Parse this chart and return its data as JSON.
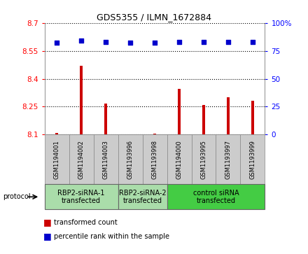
{
  "title": "GDS5355 / ILMN_1672884",
  "samples": [
    "GSM1194001",
    "GSM1194002",
    "GSM1194003",
    "GSM1193996",
    "GSM1193998",
    "GSM1194000",
    "GSM1193995",
    "GSM1193997",
    "GSM1193999"
  ],
  "bar_values": [
    8.11,
    8.47,
    8.265,
    8.1,
    8.105,
    8.345,
    8.26,
    8.3,
    8.28
  ],
  "blue_values": [
    82,
    84,
    83,
    82,
    82,
    83,
    83,
    83,
    83
  ],
  "ymin": 8.1,
  "ymax": 8.7,
  "y2min": 0,
  "y2max": 100,
  "yticks": [
    8.1,
    8.25,
    8.4,
    8.55,
    8.7
  ],
  "ytick_labels": [
    "8.1",
    "8.25",
    "8.4",
    "8.55",
    "8.7"
  ],
  "y2ticks": [
    0,
    25,
    50,
    75,
    100
  ],
  "y2tick_labels": [
    "0",
    "25",
    "50",
    "75",
    "100%"
  ],
  "bar_color": "#cc0000",
  "dot_color": "#0000cc",
  "protocol_groups": [
    {
      "label": "RBP2-siRNA-1\ntransfected",
      "start": 0,
      "end": 3,
      "color": "#aaddaa"
    },
    {
      "label": "RBP2-siRNA-2\ntransfected",
      "start": 3,
      "end": 5,
      "color": "#aaddaa"
    },
    {
      "label": "control siRNA\ntransfected",
      "start": 5,
      "end": 9,
      "color": "#44cc44"
    }
  ],
  "sample_bg_color": "#cccccc",
  "bg_color": "#ffffff",
  "grid_color": "#000000",
  "spine_color": "#999999",
  "bar_width": 0.12
}
